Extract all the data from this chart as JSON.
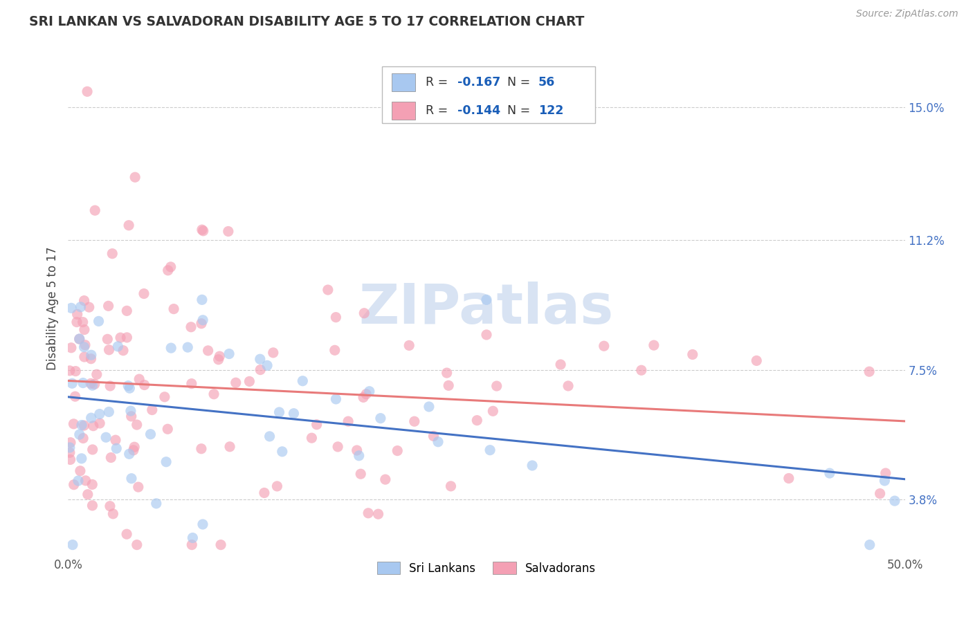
{
  "title": "SRI LANKAN VS SALVADORAN DISABILITY AGE 5 TO 17 CORRELATION CHART",
  "source": "Source: ZipAtlas.com",
  "ylabel": "Disability Age 5 to 17",
  "yticks_labels": [
    "3.8%",
    "7.5%",
    "11.2%",
    "15.0%"
  ],
  "ytick_vals": [
    0.038,
    0.075,
    0.112,
    0.15
  ],
  "xlim": [
    0.0,
    0.5
  ],
  "ylim": [
    0.022,
    0.163
  ],
  "r_sri": -0.167,
  "n_sri": 56,
  "r_sal": -0.144,
  "n_sal": 122,
  "sri_color": "#a8c8f0",
  "sal_color": "#f4a0b4",
  "sri_line_color": "#4472c4",
  "sal_line_color": "#e87a7a",
  "background_color": "#ffffff",
  "watermark_color": "#c8d8ee",
  "tick_color": "#4472c4",
  "title_color": "#333333",
  "source_color": "#999999",
  "grid_color": "#cccccc",
  "legend_blue": "#1a5eb8",
  "legend_black": "#333333"
}
